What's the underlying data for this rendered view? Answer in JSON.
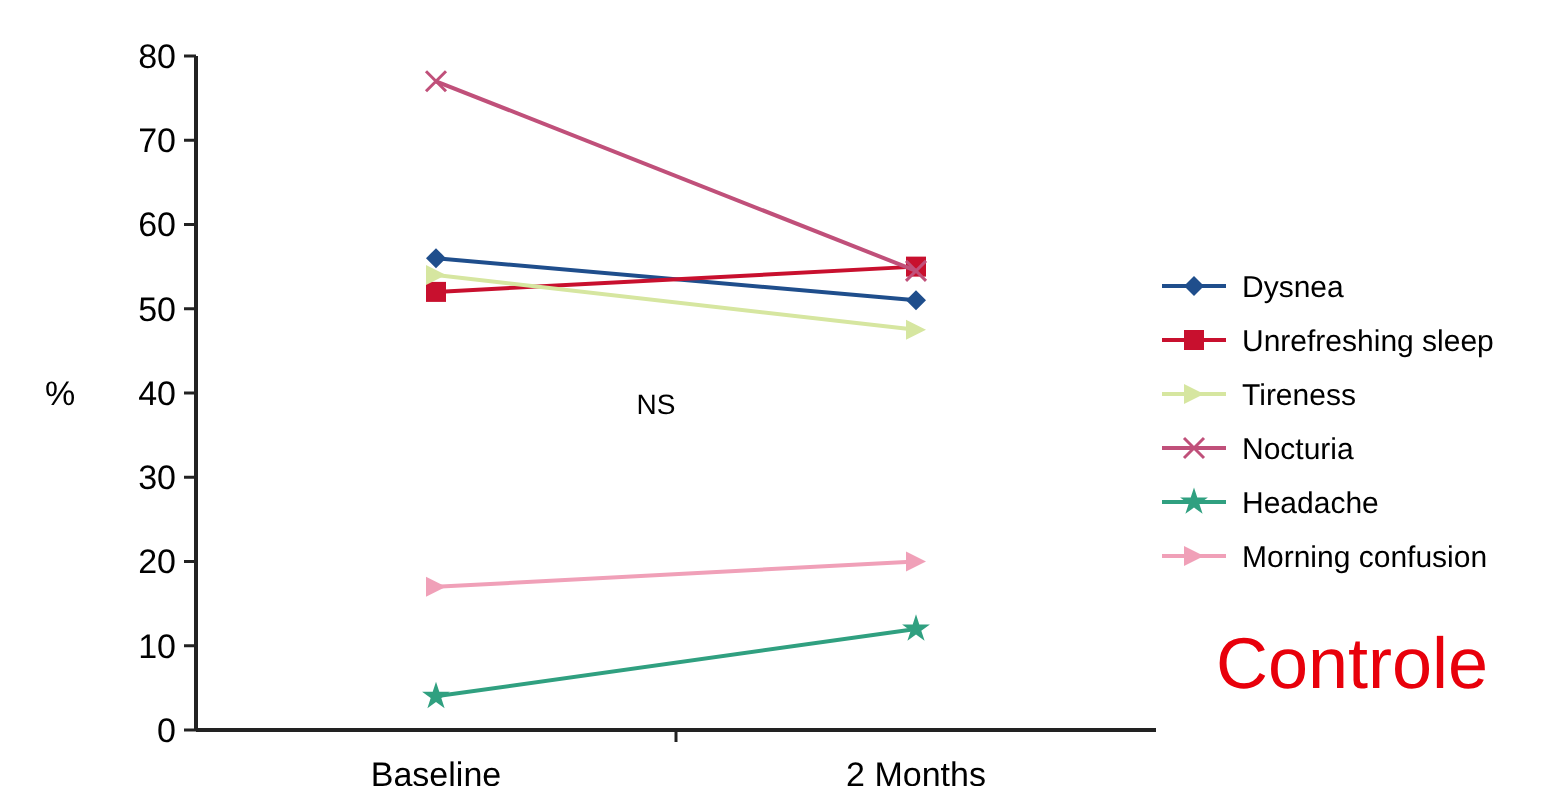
{
  "chart_data": {
    "type": "line",
    "ylabel": "%",
    "categories": [
      "Baseline",
      "2 Months"
    ],
    "ylim": [
      0,
      80
    ],
    "yticks": [
      0,
      10,
      20,
      30,
      40,
      50,
      60,
      70,
      80
    ],
    "grid": false,
    "legend": "right",
    "annotations": [
      "NS",
      "Controle"
    ],
    "series": [
      {
        "name": "Dysnea",
        "color": "#1f4e8c",
        "marker": "diamond",
        "values": [
          56,
          51
        ]
      },
      {
        "name": "Unrefreshing sleep",
        "color": "#c8102e",
        "marker": "square",
        "values": [
          52,
          55
        ]
      },
      {
        "name": "Tireness",
        "color": "#d6e6a0",
        "marker": "triangle",
        "values": [
          54,
          47.5
        ]
      },
      {
        "name": "Nocturia",
        "color": "#c0507a",
        "marker": "cross",
        "values": [
          77,
          54.5
        ]
      },
      {
        "name": "Headache",
        "color": "#30a080",
        "marker": "star",
        "values": [
          4,
          12
        ]
      },
      {
        "name": "Morning confusion",
        "color": "#f0a0b8",
        "marker": "triangle",
        "values": [
          17,
          20
        ]
      }
    ]
  }
}
